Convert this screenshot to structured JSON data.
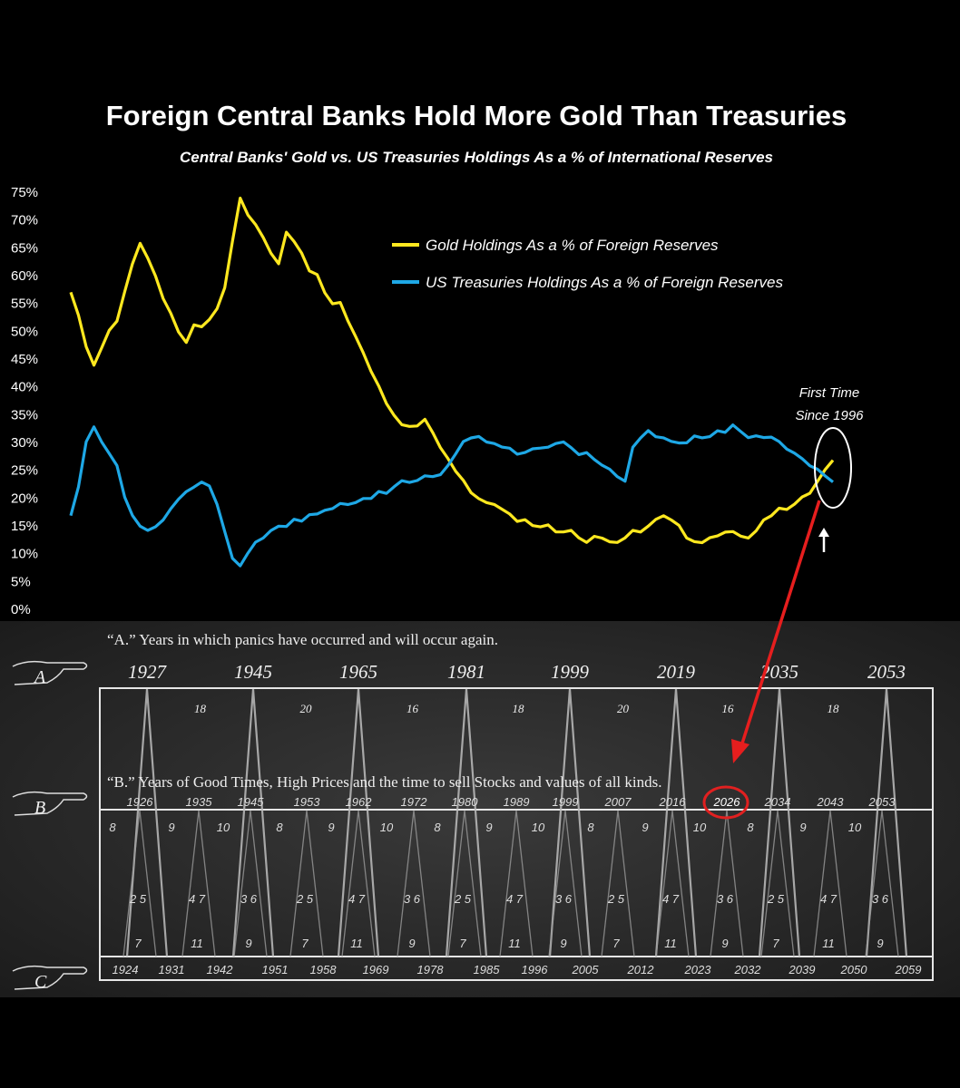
{
  "chart_data": {
    "type": "line",
    "title": "Foreign Central Banks Hold More Gold Than Treasuries",
    "subtitle": "Central Banks' Gold vs. US Treasuries Holdings As a % of International Reserves",
    "ylim": [
      0,
      75
    ],
    "y_ticks": [
      "0%",
      "5%",
      "10%",
      "15%",
      "20%",
      "25%",
      "30%",
      "35%",
      "40%",
      "45%",
      "50%",
      "55%",
      "60%",
      "65%",
      "70%",
      "75%"
    ],
    "grid": false,
    "legend_position": "top-right",
    "series": [
      {
        "name": "Gold Holdings As a % of Foreign Reserves",
        "color": "#ffe81f",
        "values": [
          57,
          53,
          47,
          44,
          47,
          50,
          52,
          57,
          62,
          66,
          63,
          60,
          56,
          53,
          50,
          48,
          51,
          51,
          52,
          54,
          58,
          66,
          74,
          71,
          69,
          67,
          64,
          62,
          68,
          66,
          64,
          61,
          60,
          57,
          55,
          55,
          52,
          49,
          46,
          43,
          40,
          37,
          35,
          33,
          33,
          33,
          34,
          32,
          29,
          27,
          25,
          23,
          21,
          20,
          19,
          19,
          18,
          17,
          16,
          16,
          15,
          15,
          15,
          14,
          14,
          14,
          13,
          12,
          13,
          13,
          12,
          12,
          13,
          14,
          14,
          15,
          16,
          17,
          16,
          15,
          13,
          12,
          12,
          13,
          13,
          14,
          14,
          13,
          13,
          14,
          16,
          17,
          18,
          18,
          19,
          20,
          21,
          23,
          25,
          27
        ]
      },
      {
        "name": "US Treasuries Holdings As a % of Foreign Reserves",
        "color": "#1ea8e6",
        "values": [
          17,
          22,
          30,
          33,
          30,
          28,
          26,
          20,
          17,
          15,
          14,
          15,
          16,
          18,
          20,
          21,
          22,
          23,
          22,
          19,
          14,
          9,
          8,
          10,
          12,
          13,
          14,
          15,
          15,
          16,
          16,
          17,
          17,
          18,
          18,
          19,
          19,
          19,
          20,
          20,
          21,
          21,
          22,
          23,
          23,
          23,
          24,
          24,
          24,
          26,
          28,
          30,
          31,
          31,
          30,
          30,
          29,
          29,
          28,
          28,
          29,
          29,
          29,
          30,
          30,
          29,
          28,
          28,
          27,
          26,
          25,
          24,
          23,
          29,
          31,
          32,
          31,
          31,
          30,
          30,
          30,
          31,
          31,
          31,
          32,
          32,
          33,
          32,
          31,
          31,
          31,
          31,
          30,
          29,
          28,
          27,
          26,
          25,
          24,
          23
        ]
      }
    ],
    "annotation": [
      "First Time",
      "Since 1996"
    ]
  },
  "panel": {
    "row_a": {
      "caption": "“A.” Years in which panics have occurred and will occur again.",
      "marker": "A",
      "years": [
        "1927",
        "1945",
        "1965",
        "1981",
        "1999",
        "2019",
        "2035",
        "2053"
      ],
      "intervals": [
        "18",
        "20",
        "16",
        "18",
        "20",
        "16",
        "18"
      ]
    },
    "row_b": {
      "caption": "“B.” Years of Good Times, High Prices and the time to sell Stocks and values of all kinds.",
      "marker": "B",
      "years": [
        "1926",
        "1935",
        "1945",
        "1953",
        "1962",
        "1972",
        "1980",
        "1989",
        "1999",
        "2007",
        "2016",
        "2026",
        "2034",
        "2043",
        "2053"
      ],
      "highlight": "2026"
    },
    "row_c": {
      "marker": "C",
      "years": [
        "1924",
        "1931",
        "1942",
        "1951",
        "1958",
        "1969",
        "1978",
        "1985",
        "1996",
        "2005",
        "2012",
        "2023",
        "2032",
        "2039",
        "2050",
        "2059"
      ]
    },
    "inner_numbers": {
      "tops": [
        "8",
        "9",
        "10",
        "8",
        "9",
        "10",
        "8",
        "9",
        "10",
        "8",
        "9",
        "10",
        "8",
        "9",
        "10"
      ],
      "mids": [
        "2 5",
        "4 7",
        "3 6",
        "2 5",
        "4 7",
        "3 6",
        "2 5",
        "4 7",
        "3 6",
        "2 5",
        "4 7",
        "3 6",
        "2 5",
        "4 7",
        "3 6"
      ],
      "bottoms": [
        "7",
        "11",
        "9",
        "7",
        "11",
        "9",
        "7",
        "11",
        "9",
        "7",
        "11",
        "9",
        "7",
        "11",
        "9"
      ]
    }
  }
}
